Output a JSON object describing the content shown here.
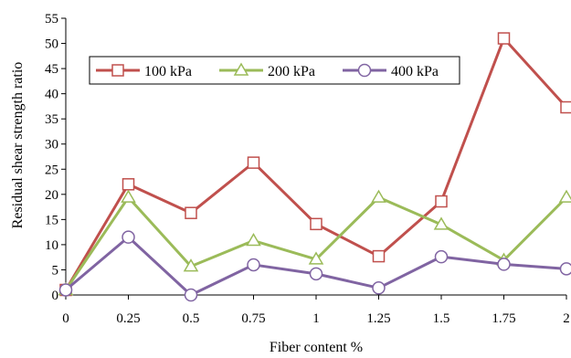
{
  "chart_data": {
    "type": "line",
    "xlabel": "Fiber content %",
    "ylabel": "Residual shear strength ratio",
    "x": [
      "0",
      "0.25",
      "0.5",
      "0.75",
      "1",
      "1.25",
      "1.5",
      "1.75",
      "2"
    ],
    "ylim": [
      0,
      55
    ],
    "yticks": [
      "0",
      "5",
      "10",
      "15",
      "20",
      "25",
      "30",
      "35",
      "40",
      "45",
      "50",
      "55"
    ],
    "grid": false,
    "legend_position": "top-left",
    "series": [
      {
        "name": "100 kPa",
        "color": "#c0504d",
        "marker": "square",
        "values": [
          1,
          22,
          16.3,
          26.3,
          14.1,
          7.7,
          18.6,
          51,
          37.3
        ]
      },
      {
        "name": "200 kPa",
        "color": "#9bbb59",
        "marker": "triangle",
        "values": [
          1,
          19.4,
          5.7,
          10.8,
          7.1,
          19.4,
          14,
          6.9,
          19.4
        ]
      },
      {
        "name": "400 kPa",
        "color": "#8064a2",
        "marker": "circle",
        "values": [
          1,
          11.5,
          0,
          6,
          4.2,
          1.4,
          7.6,
          6.1,
          5.2
        ]
      }
    ]
  }
}
